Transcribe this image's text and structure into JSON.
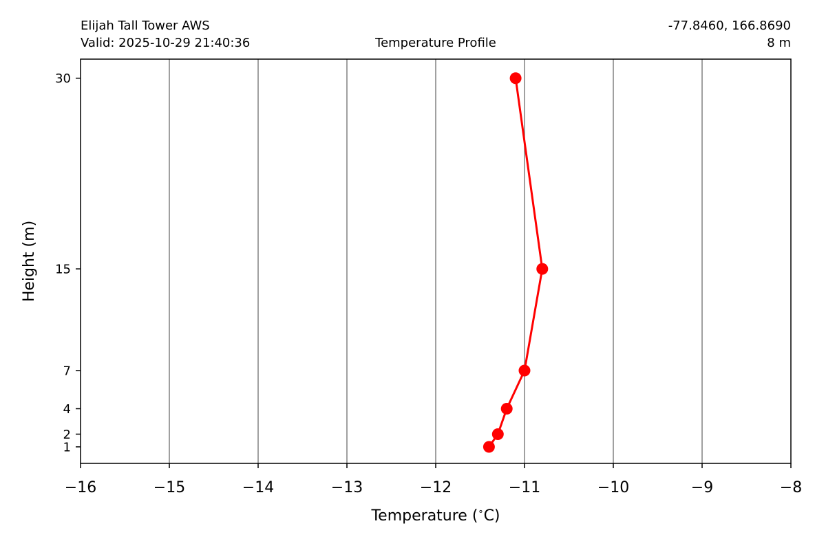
{
  "header": {
    "station": "Elijah Tall Tower AWS",
    "valid": "Valid: 2025-10-29 21:40:36",
    "title": "Temperature Profile",
    "coords": "-77.8460, 166.8690",
    "elevation": "8 m"
  },
  "chart_data": {
    "type": "line",
    "xlabel": "Temperature ($^\\circ$C)",
    "xlabel_text": "Temperature (",
    "xlabel_degree": "∘",
    "xlabel_unit": "C)",
    "ylabel": "Height (m)",
    "xlim": [
      -16,
      -8
    ],
    "ylim": [
      -0.3,
      31.5
    ],
    "xticks": [
      -16,
      -15,
      -14,
      -13,
      -12,
      -11,
      -10,
      -9,
      -8
    ],
    "xtick_labels": [
      "−16",
      "−15",
      "−14",
      "−13",
      "−12",
      "−11",
      "−10",
      "−9",
      "−8"
    ],
    "yticks": [
      1,
      2,
      4,
      7,
      15,
      30
    ],
    "ytick_labels": [
      "1",
      "2",
      "4",
      "7",
      "15",
      "30"
    ],
    "grid": "vertical",
    "series": [
      {
        "color": "#ff0000",
        "points": [
          {
            "x": -11.4,
            "y": 1
          },
          {
            "x": -11.3,
            "y": 2
          },
          {
            "x": -11.2,
            "y": 4
          },
          {
            "x": -11.0,
            "y": 7
          },
          {
            "x": -10.8,
            "y": 15
          },
          {
            "x": -11.1,
            "y": 30
          }
        ]
      }
    ],
    "grid_color": "#808080"
  }
}
